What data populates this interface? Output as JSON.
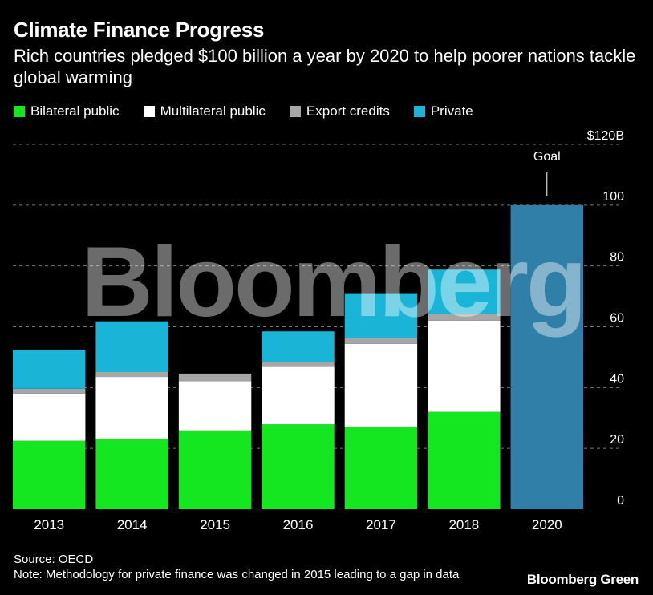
{
  "header": {
    "title": "Climate Finance Progress",
    "subtitle": "Rich countries pledged $100 billion a year by 2020 to help poorer nations tackle global warming"
  },
  "chart_data": {
    "type": "bar",
    "stacked": true,
    "categories": [
      "2013",
      "2014",
      "2015",
      "2016",
      "2017",
      "2018",
      "2020"
    ],
    "series": [
      {
        "name": "Bilateral public",
        "color": "#14e61f",
        "values": [
          22.5,
          23.1,
          25.9,
          27.9,
          27.0,
          32.0,
          null
        ]
      },
      {
        "name": "Multilateral public",
        "color": "#ffffff",
        "values": [
          15.5,
          20.4,
          16.2,
          18.9,
          27.4,
          30.0,
          null
        ]
      },
      {
        "name": "Export credits",
        "color": "#a6a6a6",
        "values": [
          1.6,
          1.6,
          2.5,
          1.6,
          1.9,
          2.1,
          null
        ]
      },
      {
        "name": "Private",
        "color": "#1ab4d6",
        "values": [
          12.8,
          16.7,
          null,
          10.1,
          14.5,
          14.7,
          null
        ]
      }
    ],
    "goal": {
      "category": "2020",
      "value": 100,
      "label": "Goal",
      "color": "#2f7fa8"
    },
    "ylim": [
      0,
      120
    ],
    "yticks": [
      0,
      20,
      40,
      60,
      80,
      100,
      120
    ],
    "ytick_labels": [
      "0",
      "20",
      "40",
      "60",
      "80",
      "100",
      "$120B"
    ],
    "grid": true,
    "legend_position": "top-left"
  },
  "watermark": "Bloomberg",
  "footer": {
    "source": "Source: OECD",
    "note": "Note: Methodology for private finance was changed in 2015 leading to a gap in data",
    "brand": "Bloomberg Green"
  }
}
